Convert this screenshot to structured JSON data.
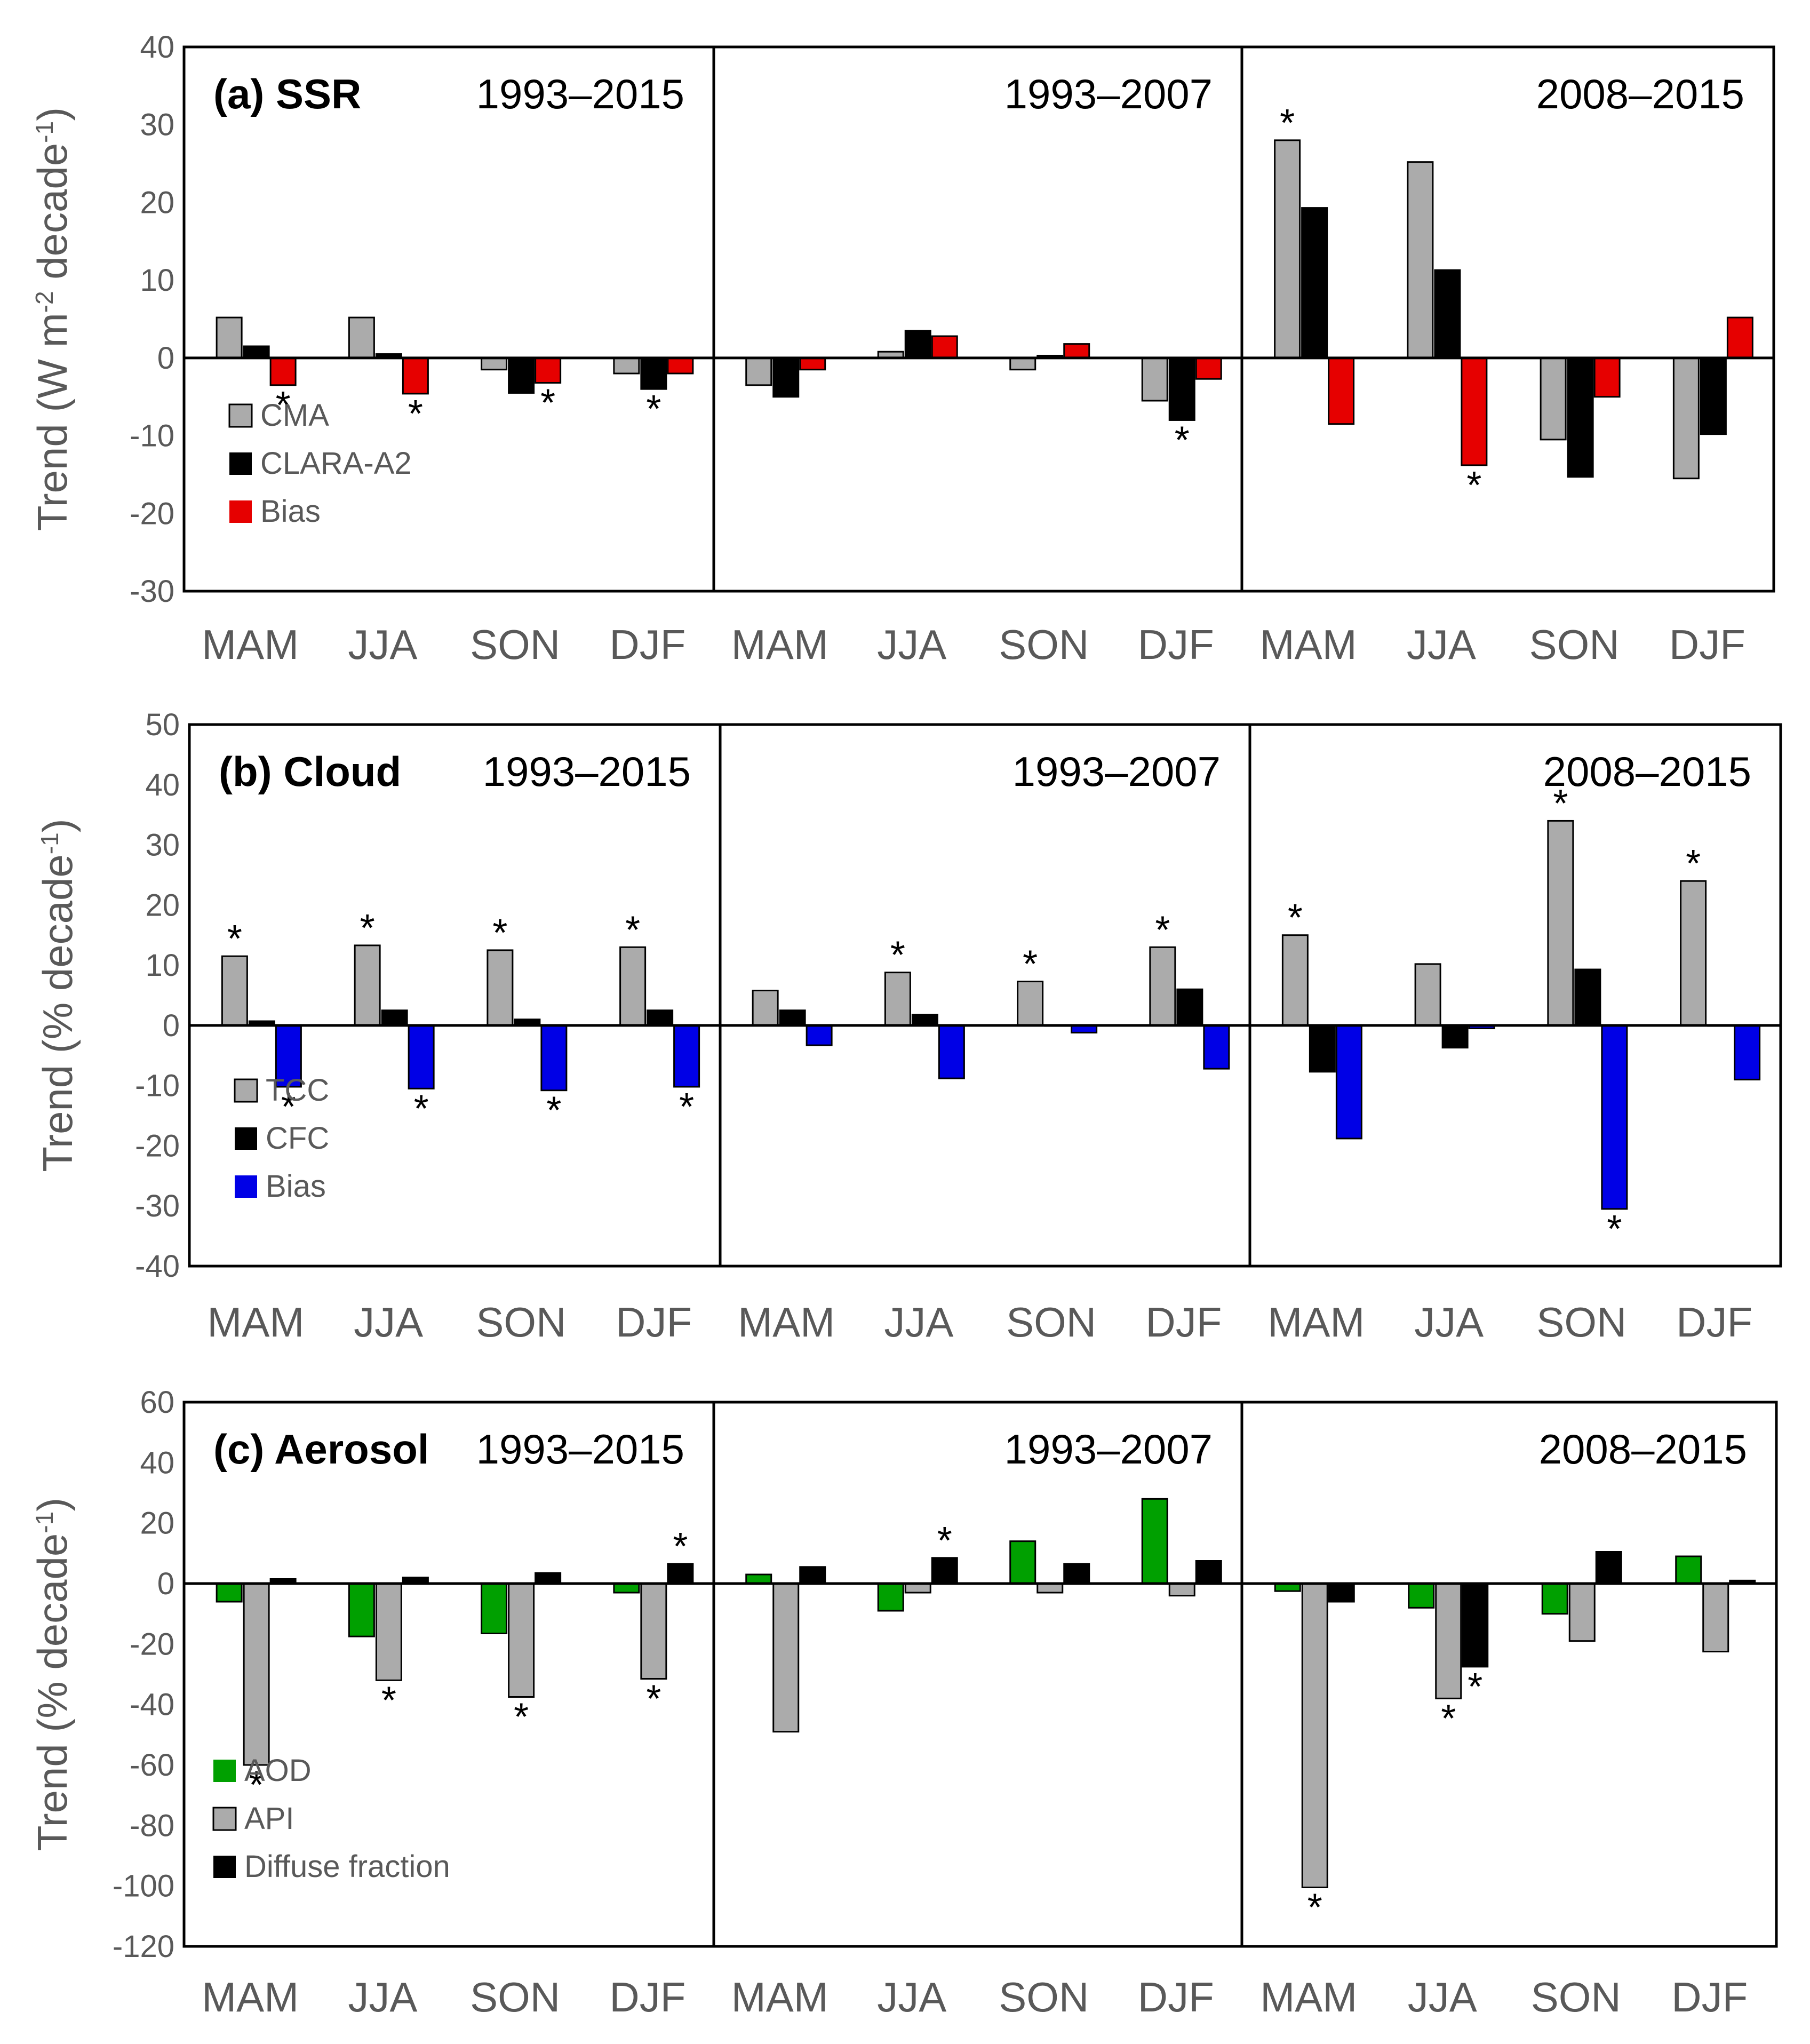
{
  "colors": {
    "gray": "#ABABAB",
    "black": "#000000",
    "red": "#E60000",
    "blue": "#0000E6",
    "green": "#00A000"
  },
  "chart_data": [
    {
      "type": "bar",
      "panel_id": "ssr",
      "title": "(a) SSR",
      "ylabel_main": "Trend (W m",
      "ylabel_sup1": "-2",
      "ylabel_mid": " decade",
      "ylabel_sup2": "-1",
      "ylabel_end": ")",
      "ylim": [
        -30,
        40
      ],
      "yticks": [
        "40",
        "30",
        "20",
        "10",
        "0",
        "-10",
        "-20",
        "-30"
      ],
      "ytick_values": [
        40,
        30,
        20,
        10,
        0,
        -10,
        -20,
        -30
      ],
      "periods": [
        "1993–2015",
        "1993–2007",
        "2008–2015"
      ],
      "categories": [
        "MAM",
        "JJA",
        "SON",
        "DJF"
      ],
      "series": [
        {
          "name": "CMA",
          "color_key": "gray",
          "values": [
            [
              5.2,
              5.2,
              -1.5,
              -2.0
            ],
            [
              -3.5,
              0.8,
              -1.5,
              -5.5
            ],
            [
              28.0,
              25.2,
              -10.5,
              -15.5
            ]
          ]
        },
        {
          "name": "CLARA-A2",
          "color_key": "black",
          "values": [
            [
              1.5,
              0.5,
              -4.5,
              -4.0
            ],
            [
              -5.0,
              3.5,
              0.3,
              -8.0
            ],
            [
              19.3,
              11.3,
              -15.3,
              -9.8
            ]
          ]
        },
        {
          "name": "Bias",
          "color_key": "red",
          "values": [
            [
              -3.5,
              -4.6,
              -3.2,
              -2.0
            ],
            [
              -1.5,
              2.8,
              1.8,
              -2.7
            ],
            [
              -8.5,
              -13.8,
              -5.0,
              5.2
            ]
          ]
        }
      ],
      "significant": [
        {
          "period": 0,
          "cat": 0,
          "series": 2
        },
        {
          "period": 0,
          "cat": 1,
          "series": 2
        },
        {
          "period": 0,
          "cat": 2,
          "series": 2
        },
        {
          "period": 0,
          "cat": 3,
          "series": 1
        },
        {
          "period": 1,
          "cat": 3,
          "series": 1
        },
        {
          "period": 2,
          "cat": 0,
          "series": 0
        },
        {
          "period": 2,
          "cat": 1,
          "series": 2
        }
      ]
    },
    {
      "type": "bar",
      "panel_id": "cloud",
      "title": "(b) Cloud",
      "ylabel_main": "Trend (% decade",
      "ylabel_sup1": "",
      "ylabel_mid": "",
      "ylabel_sup2": "-1",
      "ylabel_end": ")",
      "ylim": [
        -40,
        50
      ],
      "yticks": [
        "50",
        "40",
        "30",
        "20",
        "10",
        "0",
        "-10",
        "-20",
        "-30",
        "-40"
      ],
      "ytick_values": [
        50,
        40,
        30,
        20,
        10,
        0,
        -10,
        -20,
        -30,
        -40
      ],
      "periods": [
        "1993–2015",
        "1993–2007",
        "2008–2015"
      ],
      "categories": [
        "MAM",
        "JJA",
        "SON",
        "DJF"
      ],
      "series": [
        {
          "name": "TCC",
          "color_key": "gray",
          "values": [
            [
              11.5,
              13.3,
              12.5,
              13.0
            ],
            [
              5.8,
              8.8,
              7.3,
              13.0
            ],
            [
              15.0,
              10.2,
              34.0,
              24.0
            ]
          ]
        },
        {
          "name": "CFC",
          "color_key": "black",
          "values": [
            [
              0.7,
              2.5,
              1.0,
              2.5
            ],
            [
              2.5,
              1.8,
              0.0,
              6.0
            ],
            [
              -7.7,
              -3.7,
              9.3,
              0.0
            ]
          ]
        },
        {
          "name": "Bias",
          "color_key": "blue",
          "values": [
            [
              -10.2,
              -10.5,
              -10.8,
              -10.2
            ],
            [
              -3.3,
              -8.8,
              -1.2,
              -7.2
            ],
            [
              -18.8,
              -0.5,
              -30.5,
              -9.0
            ]
          ]
        }
      ],
      "significant": [
        {
          "period": 0,
          "cat": 0,
          "series": 0
        },
        {
          "period": 0,
          "cat": 1,
          "series": 0
        },
        {
          "period": 0,
          "cat": 2,
          "series": 0
        },
        {
          "period": 0,
          "cat": 3,
          "series": 0
        },
        {
          "period": 0,
          "cat": 0,
          "series": 2
        },
        {
          "period": 0,
          "cat": 1,
          "series": 2
        },
        {
          "period": 0,
          "cat": 2,
          "series": 2
        },
        {
          "period": 0,
          "cat": 3,
          "series": 2
        },
        {
          "period": 1,
          "cat": 1,
          "series": 0
        },
        {
          "period": 1,
          "cat": 2,
          "series": 0
        },
        {
          "period": 1,
          "cat": 3,
          "series": 0
        },
        {
          "period": 2,
          "cat": 0,
          "series": 0
        },
        {
          "period": 2,
          "cat": 2,
          "series": 0
        },
        {
          "period": 2,
          "cat": 3,
          "series": 0
        },
        {
          "period": 2,
          "cat": 2,
          "series": 2
        }
      ]
    },
    {
      "type": "bar",
      "panel_id": "aerosol",
      "title": "(c) Aerosol",
      "ylabel_main": "Trend (% decade",
      "ylabel_sup1": "",
      "ylabel_mid": "",
      "ylabel_sup2": "-1",
      "ylabel_end": ")",
      "ylim": [
        -120,
        60
      ],
      "yticks": [
        "60",
        "40",
        "20",
        "0",
        "-20",
        "-40",
        "-60",
        "-80",
        "-100",
        "-120"
      ],
      "ytick_values": [
        60,
        40,
        20,
        0,
        -20,
        -40,
        -60,
        -80,
        -100,
        -120
      ],
      "periods": [
        "1993–2015",
        "1993–2007",
        "2008–2015"
      ],
      "categories": [
        "MAM",
        "JJA",
        "SON",
        "DJF"
      ],
      "series": [
        {
          "name": "AOD",
          "color_key": "green",
          "values": [
            [
              -6.0,
              -17.5,
              -16.5,
              -3.0
            ],
            [
              3.0,
              -9.0,
              14.0,
              28.0
            ],
            [
              -2.5,
              -8.0,
              -10.0,
              9.0
            ]
          ]
        },
        {
          "name": "API",
          "color_key": "gray",
          "values": [
            [
              -60.0,
              -32.0,
              -37.5,
              -31.5
            ],
            [
              -49.0,
              -3.0,
              -3.0,
              -4.0
            ],
            [
              -100.5,
              -38.0,
              -19.0,
              -22.5
            ]
          ]
        },
        {
          "name": "Diffuse fraction",
          "color_key": "black",
          "values": [
            [
              1.5,
              2.0,
              3.5,
              6.5
            ],
            [
              5.5,
              8.5,
              6.5,
              7.5
            ],
            [
              -6.0,
              -27.5,
              10.5,
              1.0
            ]
          ]
        }
      ],
      "significant": [
        {
          "period": 0,
          "cat": 0,
          "series": 1
        },
        {
          "period": 0,
          "cat": 1,
          "series": 1
        },
        {
          "period": 0,
          "cat": 2,
          "series": 1
        },
        {
          "period": 0,
          "cat": 3,
          "series": 1
        },
        {
          "period": 0,
          "cat": 3,
          "series": 2
        },
        {
          "period": 1,
          "cat": 1,
          "series": 2
        },
        {
          "period": 2,
          "cat": 0,
          "series": 1
        },
        {
          "period": 2,
          "cat": 1,
          "series": 1
        },
        {
          "period": 2,
          "cat": 1,
          "series": 2
        }
      ]
    }
  ]
}
